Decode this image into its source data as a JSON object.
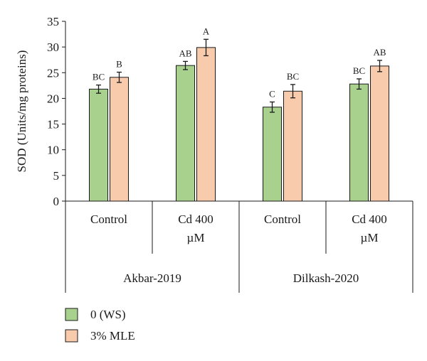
{
  "chart_data": {
    "type": "bar",
    "title": "",
    "ylabel": "SOD (Units/mg proteins)",
    "xlabel": "",
    "ylim": [
      0,
      35
    ],
    "yticks": [
      0,
      5,
      10,
      15,
      20,
      25,
      30,
      35
    ],
    "grid": false,
    "legend_position": "bottom-left",
    "groups": [
      {
        "label": "Akbar-2019",
        "categories": [
          "Control",
          "Cd 400 µM"
        ]
      },
      {
        "label": "Dilkash-2020",
        "categories": [
          "Control",
          "Cd 400 µM"
        ]
      }
    ],
    "categories": [
      "Control",
      "Cd 400 µM",
      "Control",
      "Cd 400 µM"
    ],
    "category_lines": [
      [
        "Control"
      ],
      [
        "Cd 400",
        "µM"
      ],
      [
        "Control"
      ],
      [
        "Cd 400",
        "µM"
      ]
    ],
    "series": [
      {
        "name": "0 (WS)",
        "color": "#a9d18e",
        "values": [
          21.8,
          26.4,
          18.3,
          22.8
        ],
        "errors": [
          0.8,
          0.8,
          1.0,
          1.0
        ],
        "labels": [
          "BC",
          "AB",
          "C",
          "BC"
        ]
      },
      {
        "name": "3% MLE",
        "color": "#f8cbad",
        "values": [
          24.1,
          29.9,
          21.4,
          26.3
        ],
        "errors": [
          1.0,
          1.6,
          1.3,
          1.1
        ],
        "labels": [
          "B",
          "A",
          "BC",
          "AB"
        ]
      }
    ]
  }
}
